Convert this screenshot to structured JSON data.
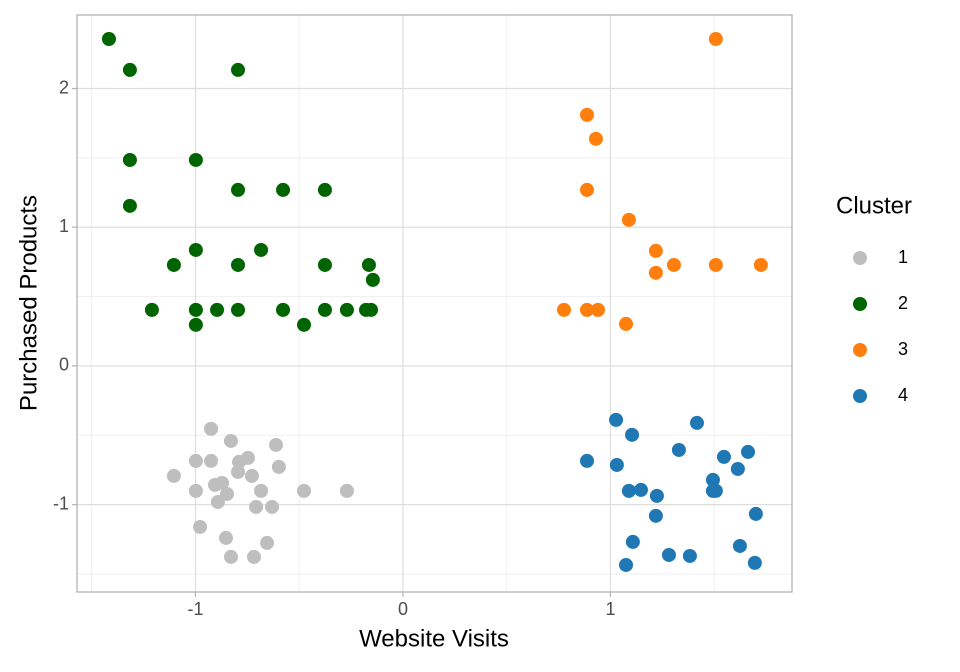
{
  "chart_data": {
    "type": "scatter",
    "xlabel": "Website Visits",
    "ylabel": "Purchased Products",
    "legend_title": "Cluster",
    "legend": "right",
    "grid": true,
    "xlim": [
      -1.571,
      1.875
    ],
    "ylim": [
      -1.63,
      2.53
    ],
    "xticks": [
      -1,
      0,
      1
    ],
    "yticks": [
      -1,
      0,
      1,
      2
    ],
    "xminor": [
      -1.5,
      -0.5,
      0.5,
      1.5
    ],
    "yminor": [
      -1.5,
      -0.5,
      0.5,
      1.5
    ],
    "series": [
      {
        "name": "1",
        "color": "#bebebe",
        "x": [
          -0.925,
          -0.829,
          -0.612,
          -0.998,
          -0.925,
          -0.747,
          -0.79,
          -0.598,
          -1.104,
          -0.795,
          -0.728,
          -0.906,
          -0.872,
          -0.998,
          -0.848,
          -0.684,
          -0.477,
          -0.27,
          -0.892,
          -0.708,
          -0.631,
          -0.978,
          -0.853,
          -0.655,
          -0.829,
          -0.718
        ],
        "y": [
          -0.454,
          -0.541,
          -0.57,
          -0.685,
          -0.685,
          -0.663,
          -0.692,
          -0.728,
          -0.793,
          -0.764,
          -0.793,
          -0.858,
          -0.844,
          -0.901,
          -0.923,
          -0.901,
          -0.901,
          -0.901,
          -0.981,
          -1.017,
          -1.017,
          -1.161,
          -1.24,
          -1.276,
          -1.377,
          -1.377
        ]
      },
      {
        "name": "2",
        "color": "#006400",
        "x": [
          -1.417,
          -1.316,
          -0.795,
          -1.316,
          -0.998,
          -1.316,
          -0.795,
          -0.578,
          -0.376,
          -0.998,
          -0.684,
          -1.104,
          -0.795,
          -0.376,
          -0.164,
          -0.145,
          -1.21,
          -0.998,
          -0.896,
          -0.795,
          -0.578,
          -0.376,
          -0.27,
          -0.178,
          -0.154,
          -0.998,
          -0.477
        ],
        "y": [
          2.357,
          2.134,
          2.134,
          1.485,
          1.485,
          1.154,
          1.269,
          1.269,
          1.269,
          0.836,
          0.836,
          0.728,
          0.728,
          0.728,
          0.728,
          0.62,
          0.404,
          0.404,
          0.404,
          0.404,
          0.404,
          0.404,
          0.404,
          0.404,
          0.404,
          0.296,
          0.296
        ]
      },
      {
        "name": "3",
        "color": "#ff7f0e",
        "x": [
          1.508,
          0.887,
          0.93,
          0.887,
          1.089,
          1.219,
          1.219,
          1.306,
          1.508,
          1.725,
          0.776,
          0.887,
          0.94,
          1.075
        ],
        "y": [
          2.357,
          1.81,
          1.637,
          1.269,
          1.053,
          0.829,
          0.671,
          0.728,
          0.728,
          0.728,
          0.404,
          0.404,
          0.404,
          0.303
        ]
      },
      {
        "name": "4",
        "color": "#1f77b4",
        "x": [
          1.027,
          1.417,
          1.104,
          1.33,
          1.663,
          1.547,
          0.887,
          1.031,
          1.614,
          1.494,
          1.089,
          1.147,
          1.494,
          1.508,
          1.224,
          1.219,
          1.701,
          1.108,
          1.282,
          1.383,
          1.624,
          1.075,
          1.696
        ],
        "y": [
          -0.389,
          -0.411,
          -0.497,
          -0.606,
          -0.62,
          -0.656,
          -0.685,
          -0.714,
          -0.743,
          -0.822,
          -0.901,
          -0.894,
          -0.901,
          -0.901,
          -0.937,
          -1.081,
          -1.067,
          -1.269,
          -1.363,
          -1.37,
          -1.298,
          -1.435,
          -1.42
        ]
      }
    ]
  }
}
